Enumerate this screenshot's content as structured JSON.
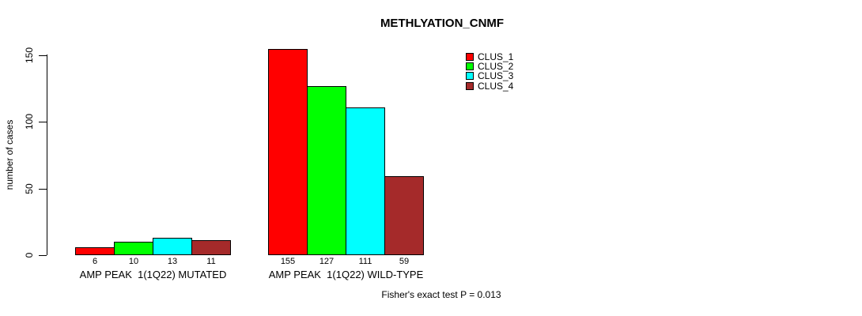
{
  "chart_data": {
    "type": "bar",
    "title": "METHLYATION_CNMF",
    "ylabel": "number of cases",
    "ylim": [
      0,
      150
    ],
    "yticks": [
      0,
      50,
      100,
      150
    ],
    "grid": false,
    "legend_position": "top-right",
    "categories": [
      "AMP PEAK  1(1Q22) MUTATED",
      "AMP PEAK  1(1Q22) WILD-TYPE"
    ],
    "series": [
      {
        "name": "CLUS_1",
        "color": "#ff0000",
        "values": [
          6,
          155
        ]
      },
      {
        "name": "CLUS_2",
        "color": "#00ff00",
        "values": [
          10,
          127
        ]
      },
      {
        "name": "CLUS_3",
        "color": "#00ffff",
        "values": [
          13,
          111
        ]
      },
      {
        "name": "CLUS_4",
        "color": "#a52a2a",
        "values": [
          11,
          59
        ]
      }
    ],
    "bar_value_labels_shown": true,
    "annotation": "Fisher's exact test P = 0.013"
  }
}
